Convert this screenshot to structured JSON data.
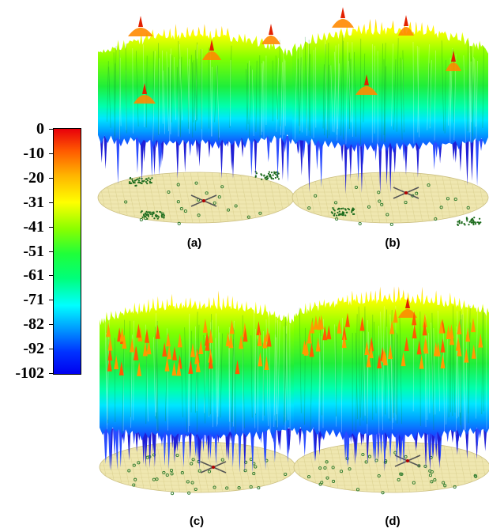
{
  "colorbar": {
    "ticks": [
      "0",
      "-10",
      "-20",
      "-31",
      "-41",
      "-51",
      "-61",
      "-71",
      "-82",
      "-92",
      "-102"
    ]
  },
  "panels": [
    {
      "id": "a",
      "label": "(a)",
      "style": "clustered"
    },
    {
      "id": "b",
      "label": "(b)",
      "style": "clustered"
    },
    {
      "id": "c",
      "label": "(c)",
      "style": "grid"
    },
    {
      "id": "d",
      "label": "(d)",
      "style": "grid"
    }
  ],
  "colors": {
    "floor": "#efe7b0",
    "floor_grid": "#d9cf8e",
    "access_point_marker": "#2c7a2c",
    "center_marker": "#b00000"
  }
}
